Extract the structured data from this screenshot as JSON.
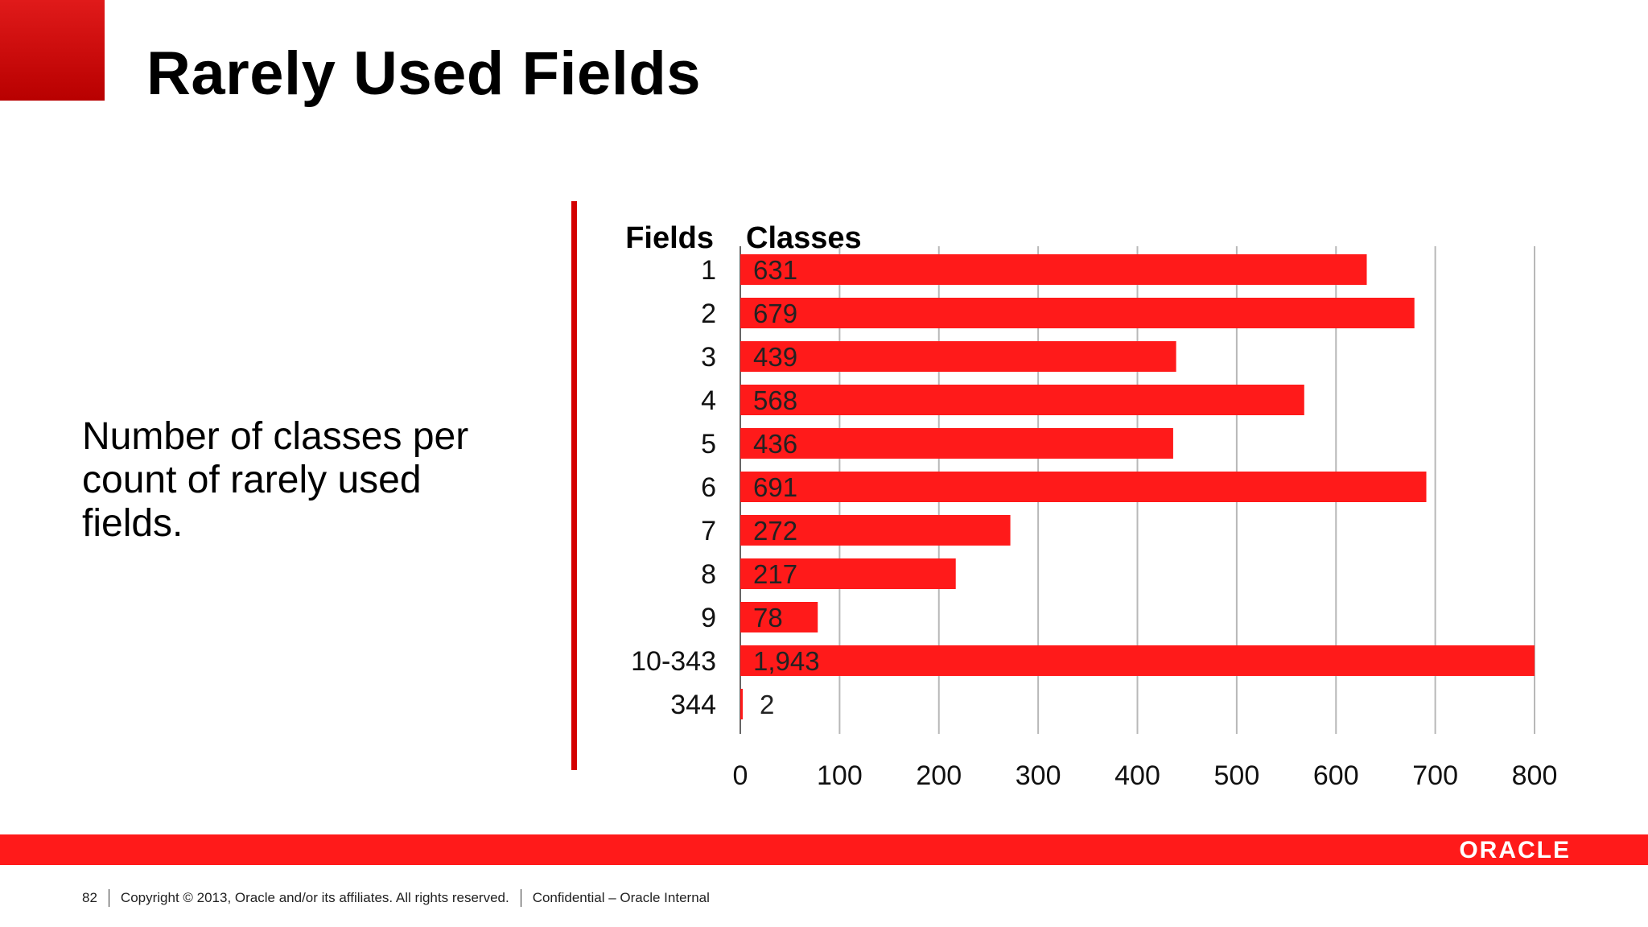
{
  "slide": {
    "title": "Rarely Used Fields",
    "description": "Number of classes per count of rarely used fields.",
    "logo": "ORACLE",
    "footer": {
      "page_number": "82",
      "copyright": "Copyright © 2013, Oracle and/or its affiliates. All rights reserved.",
      "confidentiality": "Confidential – Oracle Internal"
    },
    "colors": {
      "accent": "#ff1a1a",
      "bar": "#ff1a1a",
      "corner": "#cc0000"
    }
  },
  "chart_data": {
    "type": "bar",
    "orientation": "horizontal",
    "category_header": "Fields",
    "value_header": "Classes",
    "categories": [
      "1",
      "2",
      "3",
      "4",
      "5",
      "6",
      "7",
      "8",
      "9",
      "10-343",
      "344"
    ],
    "values": [
      631,
      679,
      439,
      568,
      436,
      691,
      272,
      217,
      78,
      1943,
      2
    ],
    "data_labels": [
      "631",
      "679",
      "439",
      "568",
      "436",
      "691",
      "272",
      "217",
      "78",
      "1,943",
      "2"
    ],
    "xlim": [
      0,
      800
    ],
    "xticks": [
      "0",
      "100",
      "200",
      "300",
      "400",
      "500",
      "600",
      "700",
      "800"
    ],
    "grid": true,
    "legend": "none"
  }
}
